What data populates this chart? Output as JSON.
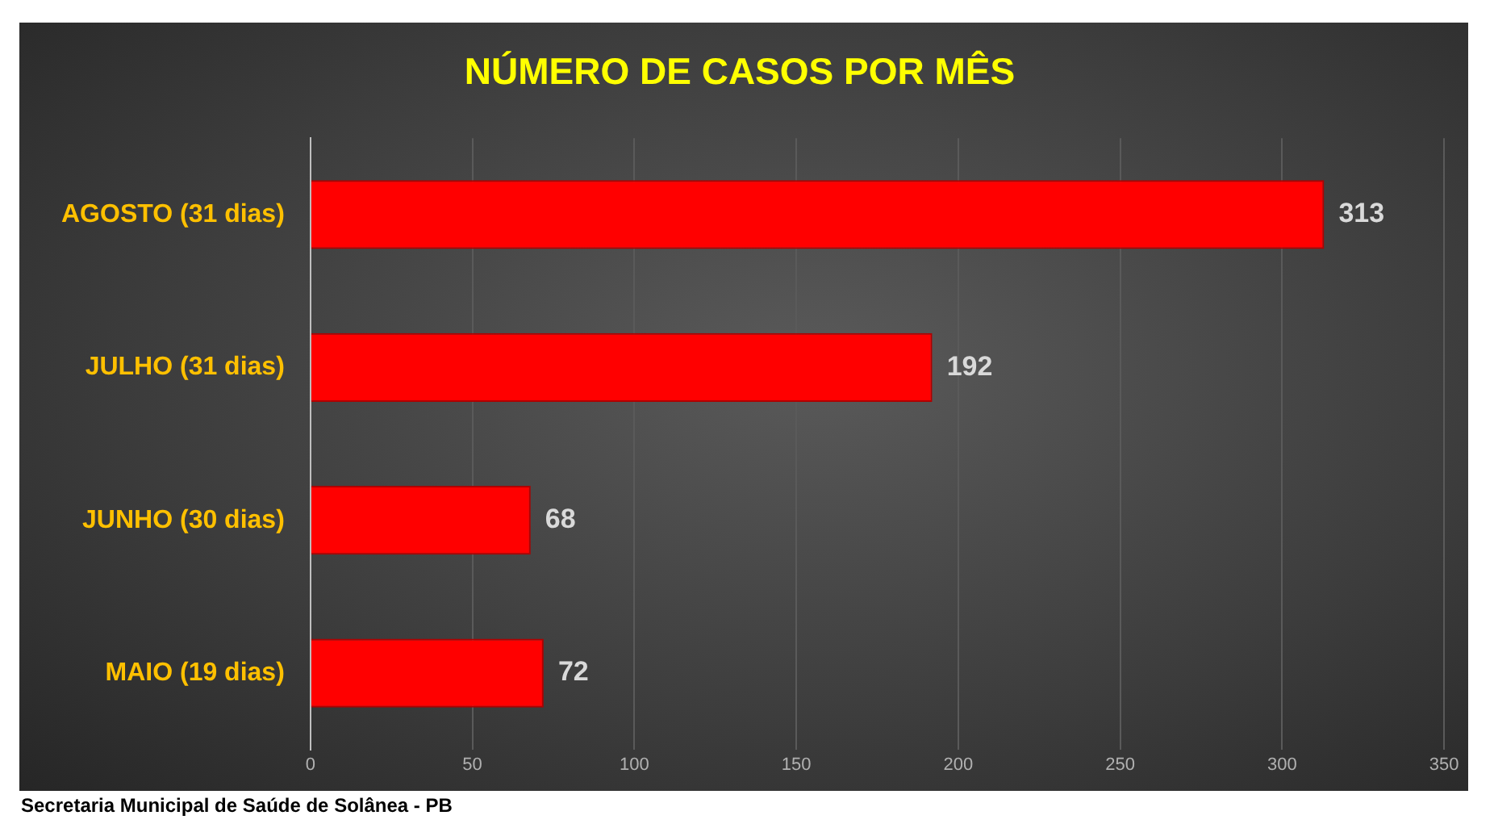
{
  "chart_data": {
    "type": "bar",
    "orientation": "horizontal",
    "title": "NÚMERO DE CASOS POR MÊS",
    "categories": [
      "AGOSTO (31 dias)",
      "JULHO (31 dias)",
      "JUNHO (30 dias)",
      "MAIO (19 dias)"
    ],
    "values": [
      313,
      192,
      68,
      72
    ],
    "color": "#ff0000",
    "xlim": [
      0,
      350
    ],
    "xticks": [
      0,
      50,
      100,
      150,
      200,
      250,
      300,
      350
    ],
    "grid": "x",
    "legend": false,
    "data_labels": true,
    "annotations": [
      "Secretaria Municipal de Saúde de Solânea - PB"
    ]
  }
}
